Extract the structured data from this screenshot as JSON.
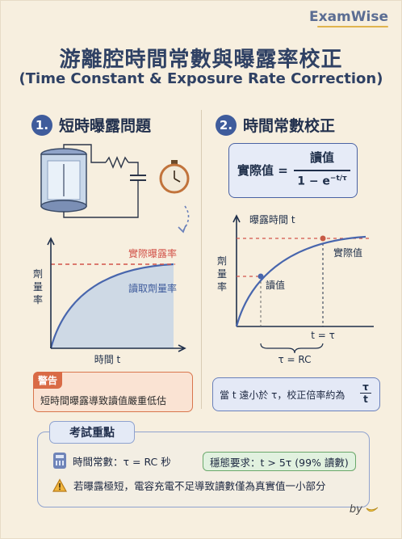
{
  "brand": "ExamWise",
  "title": "游離腔時間常數與曝露率校正",
  "subtitle": "(Time Constant & Exposure Rate Correction)",
  "section1": {
    "number": "1.",
    "title": "短時曝露問題"
  },
  "section2": {
    "number": "2.",
    "title": "時間常數校正"
  },
  "graph1": {
    "y_label": "劑\n量\n率",
    "x_label": "時間 t",
    "true_rate_label": "實際曝露率",
    "reading_label": "讀取劑量率"
  },
  "warning": {
    "tag": "警告",
    "text": "短時間曝露導致讀值嚴重低估"
  },
  "formula": {
    "lhs": "實際值 =",
    "numerator": "讀值",
    "denominator_prefix": "1 − e",
    "exponent": "−t/τ"
  },
  "graph2": {
    "top_label": "曝露時間 t",
    "y_label": "劑\n量\n率",
    "actual_label": "實際值",
    "reading_label": "讀值",
    "x_tick": "t = τ",
    "tau_label": "τ = RC"
  },
  "note": {
    "text": "當 t 遠小於 τ，校正倍率約為",
    "frac_num": "τ",
    "frac_den": "t"
  },
  "exam": {
    "heading": "考試重點",
    "time_constant": "時間常數：τ = RC 秒",
    "steady_state": "穩態要求：t > 5τ (99% 讀數)",
    "warning_text": "若曝露極短，電容充電不足導致讀數僅為真實值一小部分"
  },
  "footer": {
    "by": "by"
  },
  "colors": {
    "accent": "#3f5c9c",
    "warning": "#d96b46",
    "curve": "#4866ad",
    "dashed_red": "#d2534a"
  },
  "icons": [
    "ion-chamber-icon",
    "stopwatch-icon",
    "calculator-icon",
    "warning-triangle-icon",
    "banana-icon"
  ]
}
